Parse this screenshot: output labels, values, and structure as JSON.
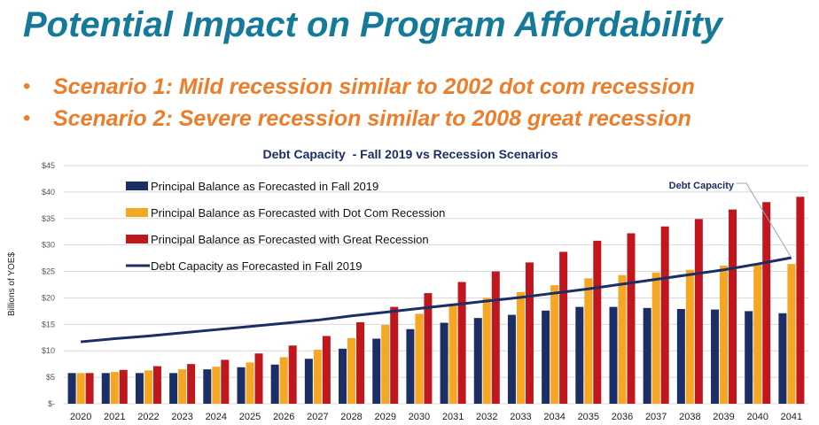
{
  "slide": {
    "title": "Potential Impact on Program Affordability",
    "bullet_char": "•",
    "bullets": [
      "Scenario 1: Mild recession similar to 2002 dot com recession",
      "Scenario 2: Severe recession similar to 2008 great recession"
    ]
  },
  "colors": {
    "title": "#157a99",
    "bullets": "#ee7d2a",
    "forecast": "#1b2f66",
    "dotcom": "#f5a623",
    "great": "#c0161d",
    "capacity": "#1b2f66"
  },
  "chart_data": {
    "type": "bar",
    "title": "Debt Capacity  - Fall 2019 vs Recession Scenarios",
    "ylabel": "Billions of YOE$",
    "xlabel": "",
    "ylim": [
      0,
      45
    ],
    "yticks": [
      {
        "value": 0,
        "label": "$-"
      },
      {
        "value": 5,
        "label": "$5"
      },
      {
        "value": 10,
        "label": "$10"
      },
      {
        "value": 15,
        "label": "$15"
      },
      {
        "value": 20,
        "label": "$20"
      },
      {
        "value": 25,
        "label": "$25"
      },
      {
        "value": 30,
        "label": "$30"
      },
      {
        "value": 35,
        "label": "$35"
      },
      {
        "value": 40,
        "label": "$40"
      },
      {
        "value": 45,
        "label": "$45"
      }
    ],
    "grid": true,
    "legend_position": "top-left",
    "categories": [
      "2020",
      "2021",
      "2022",
      "2023",
      "2024",
      "2025",
      "2026",
      "2027",
      "2028",
      "2029",
      "2030",
      "2031",
      "2032",
      "2033",
      "2034",
      "2035",
      "2036",
      "2037",
      "2038",
      "2039",
      "2040",
      "2041"
    ],
    "series": [
      {
        "name": "Principal Balance as Forecasted in Fall 2019",
        "kind": "bar",
        "values": [
          5.8,
          5.8,
          5.8,
          5.8,
          6.5,
          6.9,
          7.4,
          8.5,
          10.4,
          12.3,
          14.1,
          15.3,
          16.2,
          16.8,
          17.6,
          18.3,
          18.3,
          18.1,
          17.9,
          17.8,
          17.5,
          17.1
        ]
      },
      {
        "name": "Principal Balance as Forecasted with Dot Com Recession",
        "kind": "bar",
        "values": [
          5.8,
          6.0,
          6.3,
          6.5,
          7.0,
          7.8,
          8.8,
          10.2,
          12.4,
          14.9,
          17.0,
          18.5,
          20.0,
          21.1,
          22.4,
          23.7,
          24.3,
          24.8,
          25.3,
          26.1,
          26.5,
          26.4
        ]
      },
      {
        "name": "Principal Balance as Forecasted with Great Recession",
        "kind": "bar",
        "values": [
          5.8,
          6.4,
          7.1,
          7.5,
          8.3,
          9.5,
          11.0,
          12.8,
          15.4,
          18.3,
          20.9,
          23.0,
          25.0,
          26.7,
          28.7,
          30.8,
          32.2,
          33.5,
          34.9,
          36.7,
          38.1,
          39.1
        ]
      },
      {
        "name": "Debt Capacity as Forecasted in Fall 2019",
        "kind": "line",
        "values": [
          11.7,
          12.3,
          12.8,
          13.4,
          14.0,
          14.6,
          15.2,
          15.8,
          16.6,
          17.3,
          18.0,
          18.7,
          19.4,
          20.1,
          20.9,
          21.7,
          22.6,
          23.5,
          24.4,
          25.3,
          26.4,
          27.6
        ]
      }
    ],
    "annotations": [
      {
        "text": "Debt Capacity",
        "points_to": {
          "x": "2041",
          "y": 27.6
        }
      }
    ]
  }
}
